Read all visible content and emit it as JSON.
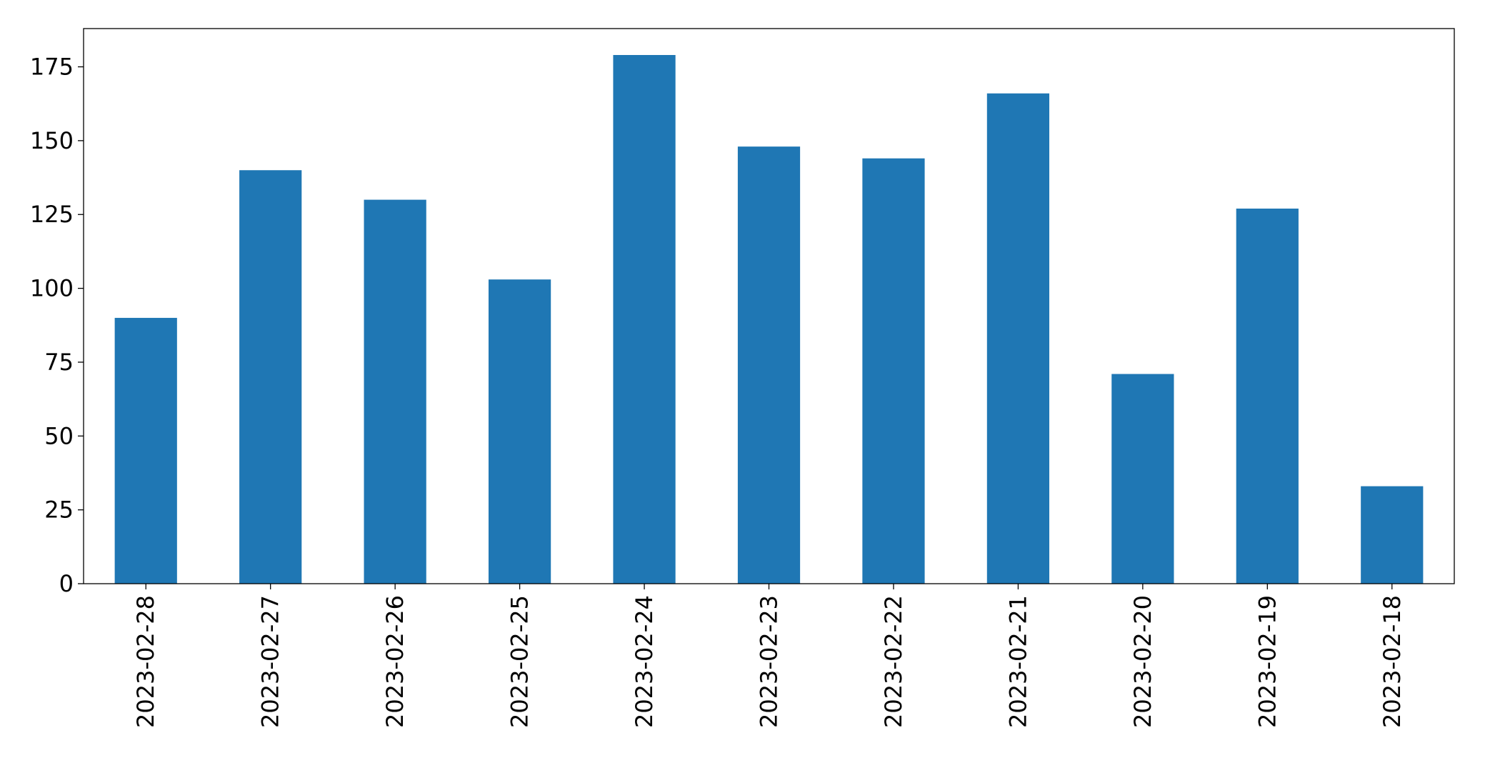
{
  "chart_data": {
    "type": "bar",
    "categories": [
      "2023-02-28",
      "2023-02-27",
      "2023-02-26",
      "2023-02-25",
      "2023-02-24",
      "2023-02-23",
      "2023-02-22",
      "2023-02-21",
      "2023-02-20",
      "2023-02-19",
      "2023-02-18"
    ],
    "values": [
      90,
      140,
      130,
      103,
      179,
      148,
      144,
      166,
      71,
      127,
      33
    ],
    "color": "#1f77b4",
    "ylim": [
      0,
      187.95
    ],
    "yticks": [
      0,
      25,
      50,
      75,
      100,
      125,
      150,
      175
    ],
    "grid": false
  }
}
